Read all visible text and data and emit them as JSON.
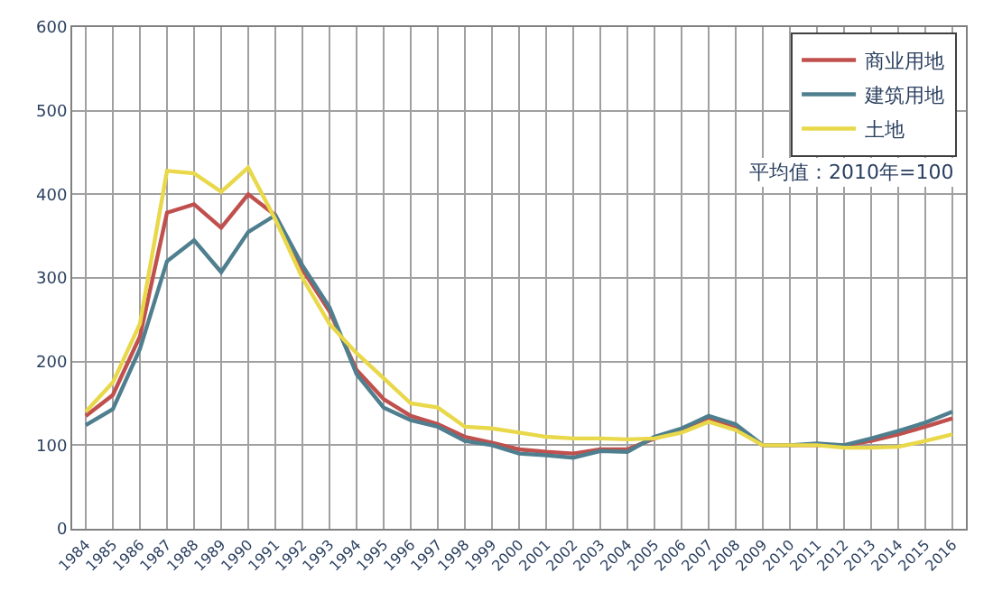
{
  "chart_data": {
    "type": "line",
    "categories": [
      "1984",
      "1985",
      "1986",
      "1987",
      "1988",
      "1989",
      "1990",
      "1991",
      "1992",
      "1993",
      "1994",
      "1995",
      "1996",
      "1997",
      "1998",
      "1999",
      "2000",
      "2001",
      "2002",
      "2003",
      "2004",
      "2005",
      "2006",
      "2007",
      "2008",
      "2009",
      "2010",
      "2011",
      "2012",
      "2013",
      "2014",
      "2015",
      "2016"
    ],
    "series": [
      {
        "name": "商业用地",
        "color": "#c0504d",
        "values": [
          135,
          160,
          230,
          378,
          388,
          360,
          400,
          375,
          310,
          260,
          190,
          155,
          135,
          125,
          110,
          103,
          95,
          92,
          90,
          95,
          95,
          108,
          118,
          132,
          120,
          100,
          100,
          100,
          100,
          105,
          113,
          122,
          132
        ]
      },
      {
        "name": "建筑用地",
        "color": "#4f7f8f",
        "values": [
          124,
          143,
          215,
          320,
          345,
          307,
          355,
          375,
          315,
          265,
          185,
          145,
          130,
          122,
          105,
          100,
          90,
          88,
          85,
          93,
          92,
          110,
          120,
          135,
          125,
          100,
          100,
          102,
          100,
          108,
          117,
          127,
          140
        ]
      },
      {
        "name": "土地",
        "color": "#e8d84a",
        "values": [
          140,
          175,
          245,
          428,
          425,
          403,
          432,
          370,
          300,
          245,
          210,
          180,
          150,
          145,
          122,
          120,
          115,
          110,
          108,
          108,
          107,
          108,
          115,
          128,
          118,
          100,
          100,
          100,
          97,
          97,
          98,
          105,
          113
        ]
      }
    ],
    "ylim": [
      0,
      600
    ],
    "yticks": [
      0,
      100,
      200,
      300,
      400,
      500,
      600
    ],
    "grid": true,
    "legend": "top right",
    "marker": "none",
    "line_style": "solid",
    "annotations": [
      "平均值：2010年=100"
    ]
  }
}
